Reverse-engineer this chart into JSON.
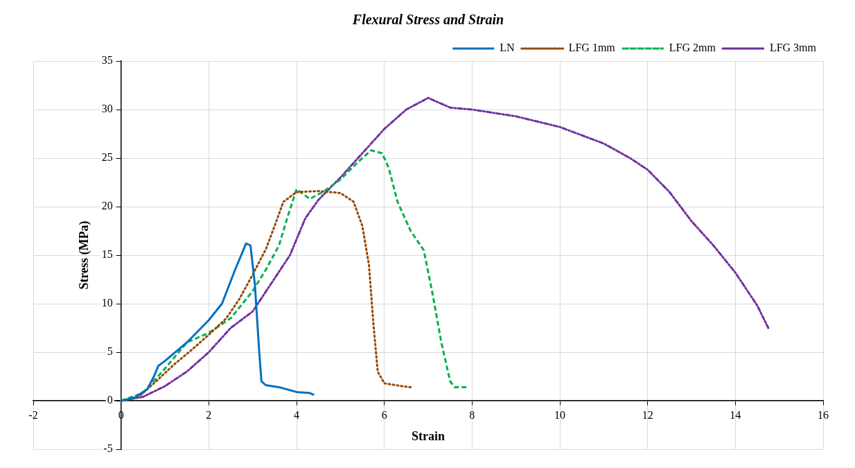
{
  "chart_data": {
    "type": "line",
    "title": "Flexural Stress and Strain",
    "xlabel": "Strain",
    "ylabel": "Stress (MPa)",
    "xlim": [
      -2,
      16
    ],
    "xticks": [
      -2,
      0,
      2,
      4,
      6,
      8,
      10,
      12,
      14,
      16
    ],
    "ylim": [
      -5,
      35
    ],
    "yticks": [
      -5,
      0,
      5,
      10,
      15,
      20,
      25,
      30,
      35
    ],
    "grid": true,
    "legend": "top right",
    "marker": "none",
    "series": [
      {
        "name": "LN",
        "color": "#0070c0",
        "line_style": "solid",
        "x": [
          0,
          0.3,
          0.6,
          0.75,
          0.85,
          1.0,
          1.5,
          2.0,
          2.3,
          2.6,
          2.85,
          2.95,
          3.05,
          3.15,
          3.2,
          3.3,
          3.6,
          4.0,
          4.3,
          4.4
        ],
        "values": [
          0,
          0.3,
          1.2,
          2.5,
          3.6,
          4.1,
          6.0,
          8.3,
          10,
          13.5,
          16.2,
          16,
          12,
          5,
          2,
          1.6,
          1.4,
          0.9,
          0.8,
          0.6
        ]
      },
      {
        "name": "LFG 1mm",
        "color": "#974706",
        "line_style": "dotted",
        "x": [
          0,
          0.4,
          0.8,
          1.2,
          1.6,
          2,
          2.4,
          2.7,
          3.0,
          3.3,
          3.5,
          3.7,
          4.0,
          4.5,
          5.0,
          5.3,
          5.5,
          5.65,
          5.75,
          5.85,
          6.0,
          6.4,
          6.6
        ],
        "values": [
          0,
          0.4,
          2,
          3.7,
          5.2,
          6.8,
          8.5,
          10.5,
          13,
          15.6,
          18,
          20.5,
          21.5,
          21.6,
          21.4,
          20.5,
          18,
          14,
          8,
          3,
          1.8,
          1.5,
          1.4
        ]
      },
      {
        "name": "LFG 2mm",
        "color": "#00b050",
        "line_style": "dashed",
        "x": [
          0,
          0.5,
          1.0,
          1.5,
          2,
          2.5,
          3.0,
          3.3,
          3.6,
          3.8,
          4.0,
          4.3,
          4.6,
          5,
          5.4,
          5.7,
          5.95,
          6.1,
          6.3,
          6.6,
          6.9,
          7.1,
          7.3,
          7.5,
          7.6,
          7.9
        ],
        "values": [
          0,
          0.8,
          3.3,
          6.0,
          7,
          8.5,
          11.3,
          13.5,
          16,
          19,
          21.8,
          20.8,
          21.5,
          22.8,
          24.6,
          25.8,
          25.5,
          24,
          20.5,
          17.5,
          15.5,
          11,
          6,
          2,
          1.4,
          1.4
        ]
      },
      {
        "name": "LFG 3mm",
        "color": "#7030a0",
        "line_style": "dashdot",
        "x": [
          0,
          0.5,
          1,
          1.5,
          2,
          2.5,
          3.0,
          3.5,
          3.85,
          4.2,
          4.5,
          5,
          5.5,
          6,
          6.5,
          7,
          7.5,
          8,
          9,
          10,
          11,
          11.6,
          12,
          12.5,
          13,
          13.5,
          14,
          14.5,
          14.75
        ],
        "values": [
          0,
          0.4,
          1.5,
          3,
          5,
          7.5,
          9.2,
          12.6,
          15,
          18.8,
          20.7,
          23,
          25.5,
          28,
          30,
          31.2,
          30.2,
          30,
          29.3,
          28.2,
          26.5,
          25,
          23.8,
          21.5,
          18.5,
          16,
          13.2,
          9.8,
          7.5
        ]
      }
    ]
  }
}
